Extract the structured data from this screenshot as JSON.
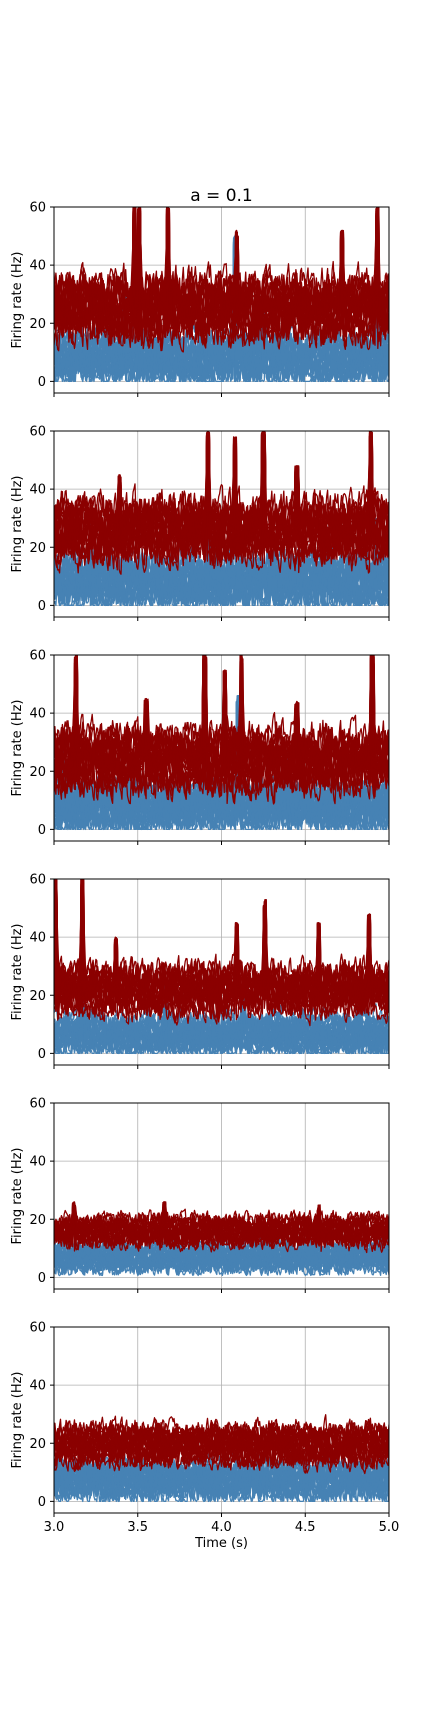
{
  "title": "a = 0.1",
  "colors": {
    "exc": "#4682b4",
    "inh": "#8b0000",
    "grid": "#b0b0b0",
    "axis": "#000000"
  },
  "chart_data": [
    {
      "type": "line",
      "xlabel": "",
      "ylabel": "Firing rate (Hz)",
      "xlim": [
        3.0,
        5.0
      ],
      "ylim": [
        -4,
        60
      ],
      "grid": true,
      "yticks": [
        0,
        20,
        40,
        60
      ],
      "xticks": [
        3.0,
        3.5,
        4.0,
        4.5,
        5.0
      ],
      "show_xticklabels": false,
      "series": [
        {
          "group": "exc",
          "band_low": 0,
          "band_high": 16,
          "min_floor": 0,
          "peaks": [
            [
              3.42,
              33
            ],
            [
              4.08,
              50
            ],
            [
              4.25,
              30
            ],
            [
              4.93,
              40
            ]
          ]
        },
        {
          "group": "inh",
          "band_low": 15,
          "band_high": 36,
          "min_floor": 2,
          "peaks": [
            [
              3.48,
              60
            ],
            [
              3.51,
              60
            ],
            [
              3.68,
              60
            ],
            [
              4.09,
              52
            ],
            [
              4.72,
              52
            ],
            [
              4.93,
              60
            ]
          ]
        }
      ]
    },
    {
      "type": "line",
      "xlabel": "",
      "ylabel": "Firing rate (Hz)",
      "xlim": [
        3.0,
        5.0
      ],
      "ylim": [
        -4,
        60
      ],
      "grid": true,
      "yticks": [
        0,
        20,
        40,
        60
      ],
      "xticks": [
        3.0,
        3.5,
        4.0,
        4.5,
        5.0
      ],
      "show_xticklabels": false,
      "series": [
        {
          "group": "exc",
          "band_low": 0,
          "band_high": 17,
          "min_floor": 0,
          "peaks": [
            [
              3.22,
              28
            ],
            [
              3.92,
              40
            ],
            [
              4.63,
              27
            ],
            [
              4.92,
              30
            ]
          ]
        },
        {
          "group": "inh",
          "band_low": 16,
          "band_high": 36,
          "min_floor": 6,
          "peaks": [
            [
              3.39,
              45
            ],
            [
              3.92,
              60
            ],
            [
              4.08,
              58
            ],
            [
              4.25,
              60
            ],
            [
              4.45,
              48
            ],
            [
              4.89,
              60
            ]
          ]
        }
      ]
    },
    {
      "type": "line",
      "xlabel": "",
      "ylabel": "Firing rate (Hz)",
      "xlim": [
        3.0,
        5.0
      ],
      "ylim": [
        -4,
        60
      ],
      "grid": true,
      "yticks": [
        0,
        20,
        40,
        60
      ],
      "xticks": [
        3.0,
        3.5,
        4.0,
        4.5,
        5.0
      ],
      "show_xticklabels": false,
      "series": [
        {
          "group": "exc",
          "band_low": 0,
          "band_high": 16,
          "min_floor": 0,
          "peaks": [
            [
              3.06,
              30
            ],
            [
              3.45,
              26
            ],
            [
              4.1,
              46
            ],
            [
              4.4,
              28
            ]
          ]
        },
        {
          "group": "inh",
          "band_low": 14,
          "band_high": 34,
          "min_floor": 10,
          "peaks": [
            [
              3.13,
              60
            ],
            [
              3.55,
              45
            ],
            [
              3.9,
              60
            ],
            [
              4.02,
              55
            ],
            [
              4.12,
              60
            ],
            [
              4.45,
              44
            ],
            [
              4.9,
              60
            ]
          ]
        }
      ]
    },
    {
      "type": "line",
      "xlabel": "",
      "ylabel": "Firing rate (Hz)",
      "xlim": [
        3.0,
        5.0
      ],
      "ylim": [
        -4,
        60
      ],
      "grid": true,
      "yticks": [
        0,
        20,
        40,
        60
      ],
      "xticks": [
        3.0,
        3.5,
        4.0,
        4.5,
        5.0
      ],
      "show_xticklabels": false,
      "series": [
        {
          "group": "exc",
          "band_low": 0,
          "band_high": 13,
          "min_floor": 0,
          "peaks": [
            [
              3.17,
              40
            ],
            [
              3.67,
              25
            ],
            [
              4.13,
              25
            ],
            [
              4.82,
              25
            ]
          ]
        },
        {
          "group": "inh",
          "band_low": 14,
          "band_high": 30,
          "min_floor": 8,
          "peaks": [
            [
              3.01,
              60
            ],
            [
              3.17,
              60
            ],
            [
              3.37,
              40
            ],
            [
              4.09,
              45
            ],
            [
              4.26,
              53
            ],
            [
              4.58,
              45
            ],
            [
              4.88,
              48
            ]
          ]
        }
      ]
    },
    {
      "type": "line",
      "xlabel": "",
      "ylabel": "Firing rate (Hz)",
      "xlim": [
        3.0,
        5.0
      ],
      "ylim": [
        -4,
        60
      ],
      "grid": true,
      "yticks": [
        0,
        20,
        40,
        60
      ],
      "xticks": [
        3.0,
        3.5,
        4.0,
        4.5,
        5.0
      ],
      "show_xticklabels": false,
      "series": [
        {
          "group": "exc",
          "band_low": 2,
          "band_high": 12,
          "min_floor": 1,
          "peaks": []
        },
        {
          "group": "inh",
          "band_low": 11,
          "band_high": 21,
          "min_floor": 10,
          "peaks": [
            [
              3.12,
              26
            ],
            [
              3.66,
              26
            ],
            [
              4.58,
              25
            ]
          ]
        }
      ]
    },
    {
      "type": "line",
      "xlabel": "Time (s)",
      "ylabel": "Firing rate (Hz)",
      "xlim": [
        3.0,
        5.0
      ],
      "ylim": [
        -4,
        60
      ],
      "grid": true,
      "yticks": [
        0,
        20,
        40,
        60
      ],
      "xticks": [
        3.0,
        3.5,
        4.0,
        4.5,
        5.0
      ],
      "show_xticklabels": true,
      "series": [
        {
          "group": "exc",
          "band_low": 1,
          "band_high": 14,
          "min_floor": 0,
          "peaks": []
        },
        {
          "group": "inh",
          "band_low": 13,
          "band_high": 26,
          "min_floor": 12,
          "peaks": [
            [
              3.62,
              27
            ],
            [
              4.3,
              27
            ]
          ]
        }
      ]
    }
  ]
}
